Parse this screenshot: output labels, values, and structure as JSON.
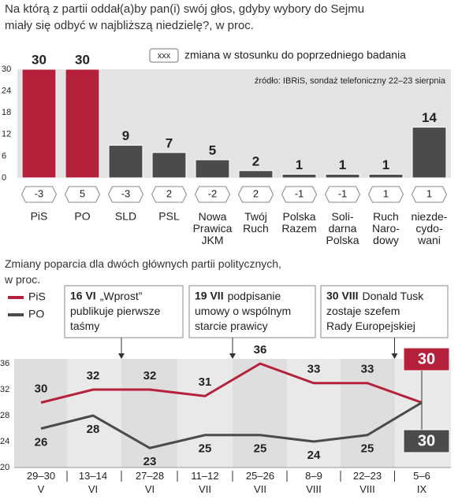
{
  "chart_data": [
    {
      "type": "bar",
      "title": "Na którą z partii oddał(a)by pan(i) swój głos, gdyby wybory do Sejmu\nmiały się odbyć w najbliższą niedzielę?, w proc.",
      "legend_box": "xxx",
      "legend_text": "zmiana w stosunku do poprzedniego badania",
      "source": "źródło: IBRiS, sondaż telefoniczny 22–23 sierpnia",
      "categories": [
        "PiS",
        "PO",
        "SLD",
        "PSL",
        "Nowa\nPrawica\nJKM",
        "Twój\nRuch",
        "Polska\nRazem",
        "Soli-\ndarna\nPolska",
        "Ruch\nNaro-\ndowy",
        "niezde-\ncydo-\nwani"
      ],
      "values": [
        30,
        30,
        9,
        7,
        5,
        2,
        1,
        1,
        1,
        14
      ],
      "changes": [
        -3,
        5,
        -3,
        2,
        -2,
        2,
        -1,
        -1,
        1,
        1
      ],
      "colors": [
        "#b5203b",
        "#b5203b",
        "#4b4b4d",
        "#4b4b4d",
        "#4b4b4d",
        "#4b4b4d",
        "#4b4b4d",
        "#4b4b4d",
        "#4b4b4d",
        "#4b4b4d"
      ],
      "ylim": [
        0,
        30
      ],
      "yticks": [
        0,
        6,
        12,
        18,
        24,
        30
      ],
      "grid": false
    },
    {
      "type": "line",
      "title": "Zmiany poparcia dla dwóch głównych partii politycznych,\nw proc.",
      "categories": [
        "29–30\nV",
        "13–14\nVI",
        "27–28\nVI",
        "11–12\nVII",
        "25–26\nVII",
        "8–9\nVIII",
        "22–23\nVIII",
        "5–6\nIX"
      ],
      "series": [
        {
          "name": "PiS",
          "color": "#b5203b",
          "values": [
            30,
            32,
            32,
            31,
            36,
            33,
            33,
            30
          ]
        },
        {
          "name": "PO",
          "color": "#4b4b4d",
          "values": [
            26,
            28,
            23,
            25,
            25,
            24,
            25,
            30
          ]
        }
      ],
      "annotations": [
        {
          "date": "16 VI",
          "text": "„Wprost”\npublikuje pierwsze\ntaśmy"
        },
        {
          "date": "19 VII",
          "text": "podpisanie\numowy o wspólnym\nstarcie prawicy"
        },
        {
          "date": "30 VIII",
          "text": "Donald Tusk\nzostaje szefem\nRady Europejskiej"
        }
      ],
      "ylim": [
        20,
        36
      ],
      "yticks": [
        20,
        24,
        28,
        32,
        36
      ],
      "grid": false
    }
  ]
}
